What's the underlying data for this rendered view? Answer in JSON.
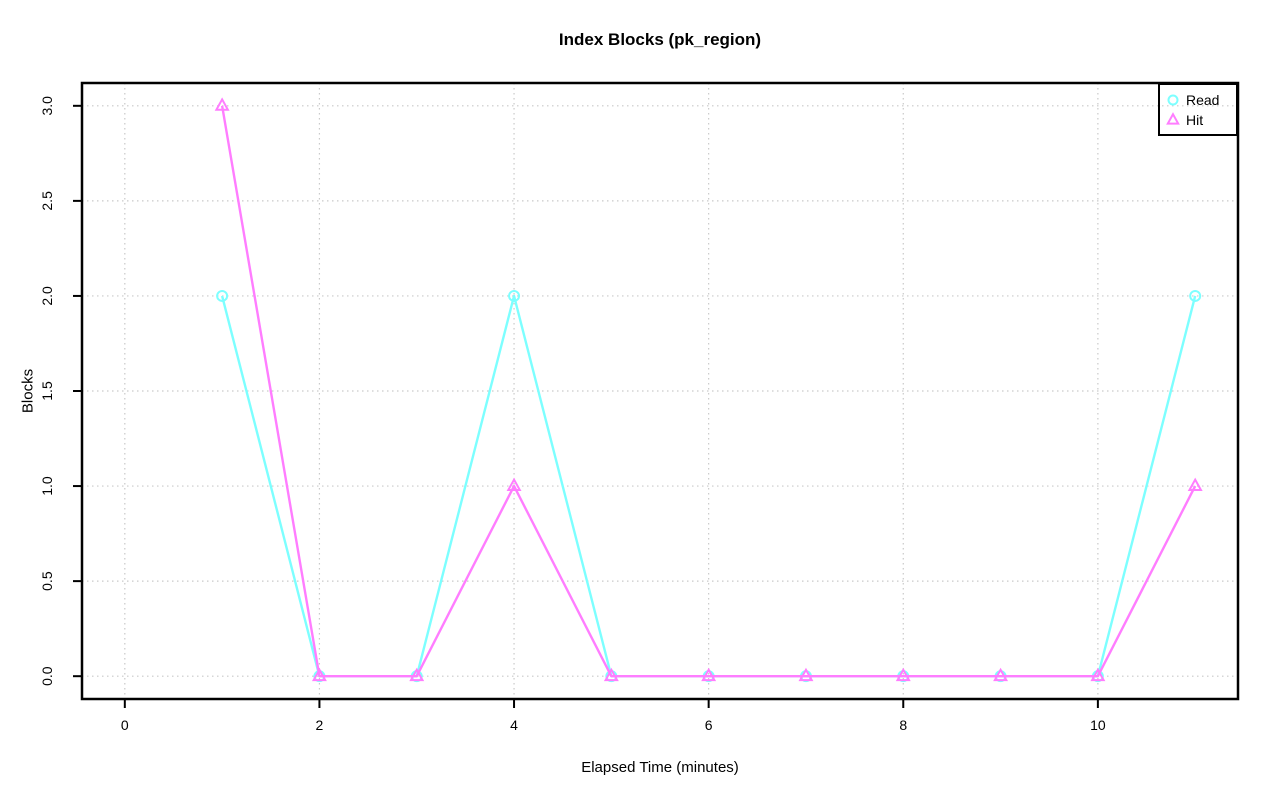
{
  "figure": {
    "background": "#ffffff"
  },
  "chart_data": {
    "type": "line",
    "title": "Index Blocks (pk_region)",
    "xlabel": "Elapsed Time (minutes)",
    "ylabel": "Blocks",
    "x": [
      1,
      2,
      3,
      4,
      5,
      6,
      7,
      8,
      9,
      10,
      11
    ],
    "series": [
      {
        "name": "Read",
        "marker": "circle",
        "color": "#7dffff",
        "values": [
          2,
          0,
          0,
          2,
          0,
          0,
          0,
          0,
          0,
          0,
          2
        ]
      },
      {
        "name": "Hit",
        "marker": "triangle",
        "color": "#ff7dff",
        "values": [
          3,
          0,
          0,
          1,
          0,
          0,
          0,
          0,
          0,
          0,
          1
        ]
      }
    ],
    "xticks": [
      0,
      2,
      4,
      6,
      8,
      10
    ],
    "yticks": [
      0.0,
      0.5,
      1.0,
      1.5,
      2.0,
      2.5,
      3.0
    ],
    "ytick_decimals": 1,
    "xlim": [
      -0.44,
      11.44
    ],
    "ylim": [
      -0.12,
      3.12
    ],
    "grid": "dotted",
    "grid_color": "#c9c9c9",
    "axis_color": "#000000",
    "legend_position": "top-right"
  }
}
